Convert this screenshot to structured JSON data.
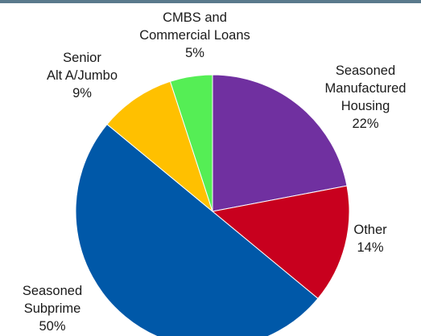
{
  "chart_data": {
    "type": "pie",
    "start_angle_deg": 0,
    "direction": "clockwise",
    "slices": [
      {
        "label_lines": [
          "Seasoned",
          "Manufactured",
          "Housing"
        ],
        "value": 22,
        "pct_text": "22%",
        "color": "#7030a0"
      },
      {
        "label_lines": [
          "Other"
        ],
        "value": 14,
        "pct_text": "14%",
        "color": "#c8001e"
      },
      {
        "label_lines": [
          "Seasoned",
          "Subprime"
        ],
        "value": 50,
        "pct_text": "50%",
        "color": "#0058a8"
      },
      {
        "label_lines": [
          "Senior",
          "Alt A/Jumbo"
        ],
        "value": 9,
        "pct_text": "9%",
        "color": "#ffc000"
      },
      {
        "label_lines": [
          "CMBS and",
          "Commercial Loans"
        ],
        "value": 5,
        "pct_text": "5%",
        "color": "#55ee55"
      }
    ]
  }
}
